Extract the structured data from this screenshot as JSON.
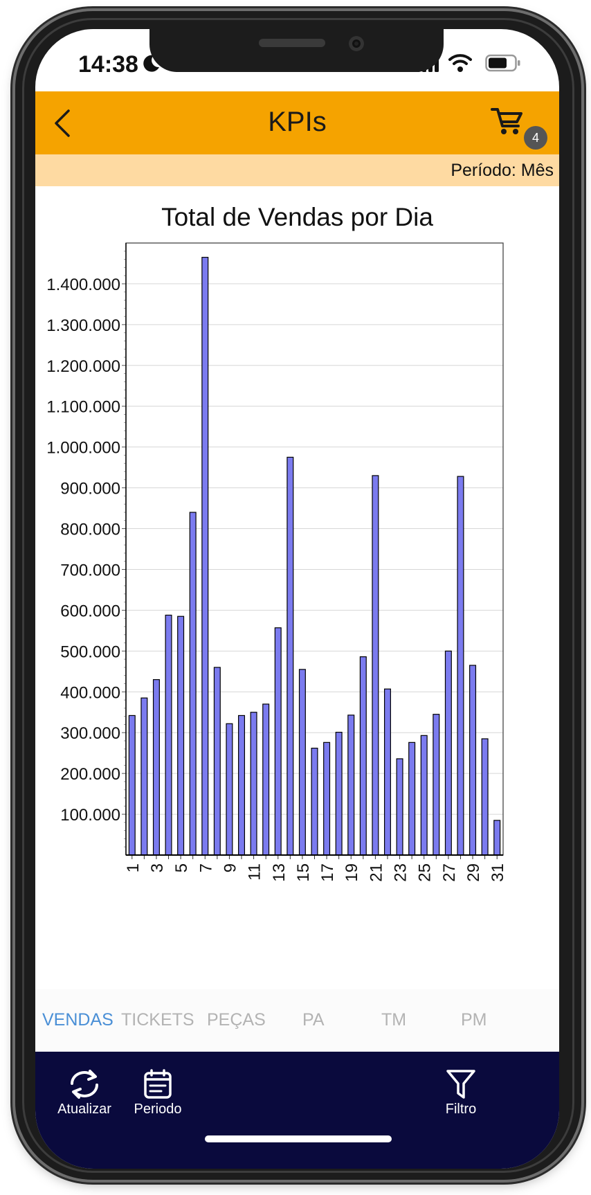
{
  "status_bar": {
    "time": "14:38"
  },
  "header": {
    "title": "KPIs",
    "cart_count": "4"
  },
  "period_label": "Período: Mês",
  "tabs": [
    {
      "label": "VENDAS",
      "active": true
    },
    {
      "label": "TICKETS",
      "active": false
    },
    {
      "label": "PEÇAS",
      "active": false
    },
    {
      "label": "PA",
      "active": false
    },
    {
      "label": "TM",
      "active": false
    },
    {
      "label": "PM",
      "active": false
    }
  ],
  "bottom_nav": {
    "refresh_label": "Atualizar",
    "period_label": "Periodo",
    "filter_label": "Filtro"
  },
  "colors": {
    "header": "#f5a300",
    "period_bar": "#fedaa2",
    "bars": "#7b7bef",
    "nav": "#0a0a3d",
    "active_tab": "#4a8fd6"
  },
  "chart_data": {
    "type": "bar",
    "title": "Total de Vendas por Dia",
    "xlabel": "",
    "ylabel": "",
    "ylim": [
      0,
      1500000
    ],
    "yticks": [
      "100.000",
      "200.000",
      "300.000",
      "400.000",
      "500.000",
      "600.000",
      "700.000",
      "800.000",
      "900.000",
      "1.000.000",
      "1.100.000",
      "1.200.000",
      "1.300.000",
      "1.400.000"
    ],
    "xtick_labels": [
      "1",
      "3",
      "5",
      "7",
      "9",
      "11",
      "13",
      "15",
      "17",
      "19",
      "21",
      "23",
      "25",
      "27",
      "29",
      "31"
    ],
    "categories": [
      "1",
      "2",
      "3",
      "4",
      "5",
      "6",
      "7",
      "8",
      "9",
      "10",
      "11",
      "12",
      "13",
      "14",
      "15",
      "16",
      "17",
      "18",
      "19",
      "20",
      "21",
      "22",
      "23",
      "24",
      "25",
      "26",
      "27",
      "28",
      "29",
      "30",
      "31"
    ],
    "values": [
      342000,
      385000,
      430000,
      588000,
      585000,
      840000,
      1465000,
      460000,
      322000,
      342000,
      350000,
      370000,
      557000,
      975000,
      455000,
      262000,
      276000,
      301000,
      343000,
      486000,
      930000,
      407000,
      236000,
      276000,
      293000,
      345000,
      500000,
      928000,
      465000,
      285000,
      85000
    ],
    "grid": true
  }
}
